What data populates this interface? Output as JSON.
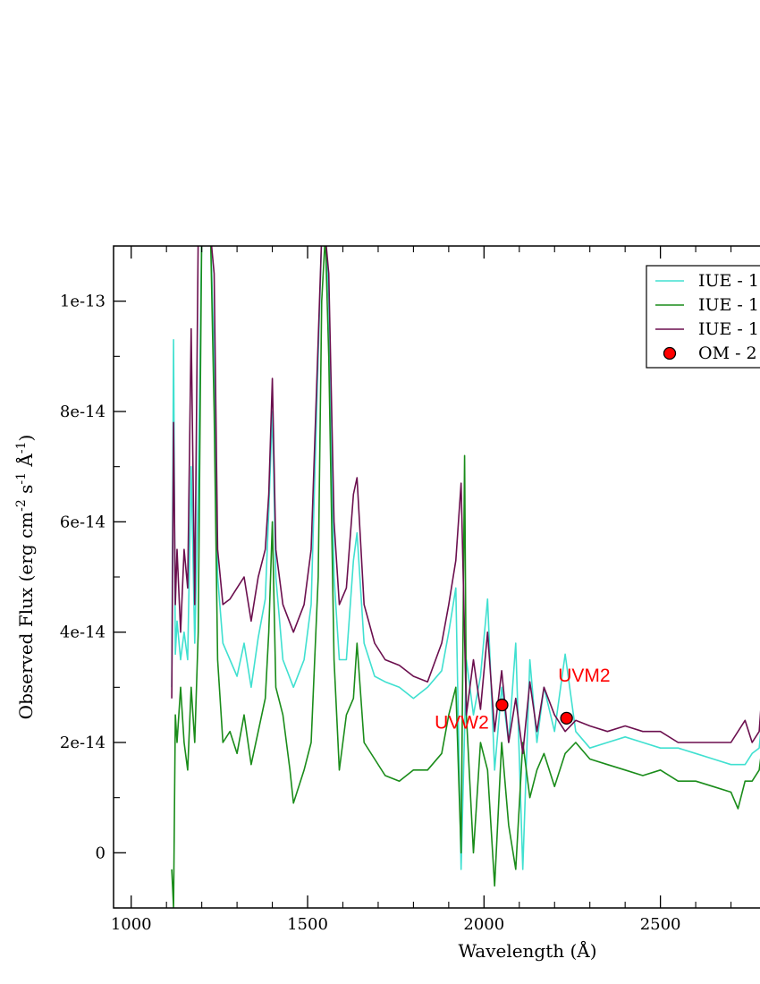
{
  "chart_data": {
    "type": "line",
    "xlabel": "Wavelength (Å)",
    "ylabel_parts": [
      "Observed Flux (erg cm",
      "-2",
      " s",
      "-1",
      " Å",
      "-1",
      ")"
    ],
    "xlim": [
      950,
      2800
    ],
    "ylim": [
      -1e-14,
      1.1e-13
    ],
    "xticks": [
      1000,
      1500,
      2000,
      2500
    ],
    "xtick_labels": [
      "1000",
      "1500",
      "2000",
      "2500"
    ],
    "yticks": [
      0,
      2e-14,
      4e-14,
      6e-14,
      8e-14,
      1e-13
    ],
    "ytick_labels": [
      "0",
      "2e-14",
      "4e-14",
      "6e-14",
      "8e-14",
      "1e-13"
    ],
    "grid": false,
    "legend_position": "top-right",
    "series": [
      {
        "name": "IUE - 1",
        "color": "#40e0d0",
        "x": [
          1115,
          1120,
          1125,
          1130,
          1140,
          1150,
          1160,
          1170,
          1180,
          1190,
          1200,
          1210,
          1216,
          1225,
          1235,
          1245,
          1260,
          1280,
          1300,
          1320,
          1340,
          1360,
          1380,
          1390,
          1400,
          1410,
          1430,
          1460,
          1490,
          1510,
          1530,
          1540,
          1550,
          1560,
          1575,
          1590,
          1610,
          1630,
          1640,
          1660,
          1690,
          1720,
          1760,
          1800,
          1840,
          1880,
          1900,
          1920,
          1935,
          1950,
          1970,
          1990,
          2010,
          2030,
          2050,
          2070,
          2090,
          2110,
          2130,
          2150,
          2170,
          2200,
          2230,
          2260,
          2300,
          2350,
          2400,
          2450,
          2500,
          2550,
          2600,
          2650,
          2700,
          2740,
          2760,
          2780,
          2800
        ],
        "y": [
          3e-14,
          9.3e-14,
          3.6e-14,
          4.2e-14,
          3.5e-14,
          4e-14,
          3.5e-14,
          7e-14,
          3.8e-14,
          6.5e-14,
          1.12e-13,
          1.12e-13,
          1.12e-13,
          1.12e-13,
          9e-14,
          5e-14,
          3.8e-14,
          3.5e-14,
          3.2e-14,
          3.8e-14,
          3e-14,
          3.9e-14,
          4.6e-14,
          6.2e-14,
          8e-14,
          5e-14,
          3.5e-14,
          3e-14,
          3.5e-14,
          4.5e-14,
          9e-14,
          1.12e-13,
          1.12e-13,
          1e-13,
          5e-14,
          3.5e-14,
          3.5e-14,
          5.3e-14,
          5.8e-14,
          3.8e-14,
          3.2e-14,
          3.1e-14,
          3e-14,
          2.8e-14,
          3e-14,
          3.3e-14,
          4e-14,
          4.8e-14,
          -3e-15,
          3.5e-14,
          2.5e-14,
          3.2e-14,
          4.6e-14,
          1.5e-14,
          3e-14,
          2e-14,
          3.8e-14,
          -3e-15,
          3.5e-14,
          2e-14,
          3e-14,
          2.2e-14,
          3.6e-14,
          2.2e-14,
          1.9e-14,
          2e-14,
          2.1e-14,
          2e-14,
          1.9e-14,
          1.9e-14,
          1.8e-14,
          1.7e-14,
          1.6e-14,
          1.6e-14,
          1.8e-14,
          1.9e-14,
          3.2e-14
        ]
      },
      {
        "name": "IUE - 1",
        "color": "#1a8c1a",
        "x": [
          1115,
          1120,
          1125,
          1130,
          1140,
          1150,
          1160,
          1170,
          1180,
          1190,
          1200,
          1210,
          1216,
          1225,
          1235,
          1245,
          1260,
          1280,
          1300,
          1320,
          1340,
          1360,
          1380,
          1390,
          1400,
          1410,
          1430,
          1450,
          1460,
          1490,
          1510,
          1530,
          1540,
          1550,
          1560,
          1575,
          1590,
          1610,
          1630,
          1640,
          1660,
          1690,
          1720,
          1760,
          1800,
          1840,
          1880,
          1900,
          1920,
          1935,
          1945,
          1950,
          1970,
          1990,
          2010,
          2030,
          2050,
          2070,
          2090,
          2110,
          2130,
          2150,
          2170,
          2200,
          2230,
          2260,
          2300,
          2350,
          2400,
          2450,
          2500,
          2550,
          2600,
          2650,
          2700,
          2720,
          2740,
          2760,
          2780,
          2800
        ],
        "y": [
          -3e-15,
          -1e-14,
          2.5e-14,
          2e-14,
          3e-14,
          2e-14,
          1.5e-14,
          3e-14,
          2e-14,
          4e-14,
          1.12e-13,
          1.12e-13,
          1.12e-13,
          1.12e-13,
          8e-14,
          3.5e-14,
          2e-14,
          2.2e-14,
          1.8e-14,
          2.5e-14,
          1.6e-14,
          2.2e-14,
          2.8e-14,
          4e-14,
          6e-14,
          3e-14,
          2.5e-14,
          1.5e-14,
          9e-15,
          1.5e-14,
          2e-14,
          5e-14,
          1e-13,
          1.12e-13,
          9e-14,
          3.5e-14,
          1.5e-14,
          2.5e-14,
          2.8e-14,
          3.8e-14,
          2e-14,
          1.7e-14,
          1.4e-14,
          1.3e-14,
          1.5e-14,
          1.5e-14,
          1.8e-14,
          2.5e-14,
          3e-14,
          0.0,
          7.2e-14,
          2.5e-14,
          0.0,
          2e-14,
          1.5e-14,
          -6e-15,
          2e-14,
          5e-15,
          -3e-15,
          2e-14,
          1e-14,
          1.5e-14,
          1.8e-14,
          1.2e-14,
          1.8e-14,
          2e-14,
          1.7e-14,
          1.6e-14,
          1.5e-14,
          1.4e-14,
          1.5e-14,
          1.3e-14,
          1.3e-14,
          1.2e-14,
          1.1e-14,
          8e-15,
          1.3e-14,
          1.3e-14,
          1.5e-14,
          2.5e-14
        ]
      },
      {
        "name": "IUE - 1",
        "color": "#6b0f4e",
        "x": [
          1115,
          1120,
          1125,
          1130,
          1140,
          1150,
          1160,
          1170,
          1180,
          1190,
          1200,
          1210,
          1216,
          1225,
          1235,
          1245,
          1260,
          1280,
          1300,
          1320,
          1340,
          1360,
          1380,
          1390,
          1400,
          1410,
          1430,
          1460,
          1490,
          1510,
          1530,
          1540,
          1550,
          1560,
          1575,
          1590,
          1610,
          1630,
          1640,
          1660,
          1690,
          1720,
          1760,
          1800,
          1840,
          1880,
          1900,
          1920,
          1935,
          1950,
          1970,
          1990,
          2010,
          2030,
          2050,
          2070,
          2090,
          2110,
          2130,
          2150,
          2170,
          2200,
          2230,
          2260,
          2300,
          2350,
          2400,
          2450,
          2500,
          2550,
          2600,
          2650,
          2700,
          2740,
          2760,
          2780,
          2800
        ],
        "y": [
          2.8e-14,
          7.8e-14,
          4.5e-14,
          5.5e-14,
          4e-14,
          5.5e-14,
          4.8e-14,
          9.5e-14,
          4.5e-14,
          1.12e-13,
          1.12e-13,
          1.12e-13,
          1.12e-13,
          1.12e-13,
          1.05e-13,
          5.5e-14,
          4.5e-14,
          4.6e-14,
          4.8e-14,
          5e-14,
          4.2e-14,
          5e-14,
          5.5e-14,
          6.5e-14,
          8.6e-14,
          5.5e-14,
          4.5e-14,
          4e-14,
          4.5e-14,
          5.5e-14,
          9.3e-14,
          1.12e-13,
          1.12e-13,
          1.05e-13,
          6e-14,
          4.5e-14,
          4.8e-14,
          6.5e-14,
          6.8e-14,
          4.5e-14,
          3.8e-14,
          3.5e-14,
          3.4e-14,
          3.2e-14,
          3.1e-14,
          3.8e-14,
          4.5e-14,
          5.3e-14,
          6.7e-14,
          2.5e-14,
          3.5e-14,
          2.6e-14,
          4e-14,
          2.2e-14,
          3.3e-14,
          2e-14,
          2.8e-14,
          1.8e-14,
          3.1e-14,
          2.2e-14,
          3e-14,
          2.5e-14,
          2.2e-14,
          2.4e-14,
          2.3e-14,
          2.2e-14,
          2.3e-14,
          2.2e-14,
          2.2e-14,
          2e-14,
          2e-14,
          2e-14,
          2e-14,
          2.4e-14,
          2e-14,
          2.2e-14,
          4e-14
        ]
      }
    ],
    "points": {
      "name": "OM - 2",
      "color": "#ff0000",
      "x": [
        2051,
        2234
      ],
      "y": [
        2.68e-14,
        2.44e-14
      ]
    },
    "annotations": [
      {
        "text": "UVW2",
        "x": 1860,
        "y": 2.25e-14,
        "color": "#ff0000"
      },
      {
        "text": "UVM2",
        "x": 2210,
        "y": 3.1e-14,
        "color": "#ff0000"
      }
    ],
    "legend": [
      {
        "label": "IUE - 1",
        "color": "#40e0d0",
        "kind": "line"
      },
      {
        "label": "IUE - 1",
        "color": "#1a8c1a",
        "kind": "line"
      },
      {
        "label": "IUE - 1",
        "color": "#6b0f4e",
        "kind": "line"
      },
      {
        "label": "OM - 2",
        "color": "#ff0000",
        "kind": "marker"
      }
    ]
  }
}
